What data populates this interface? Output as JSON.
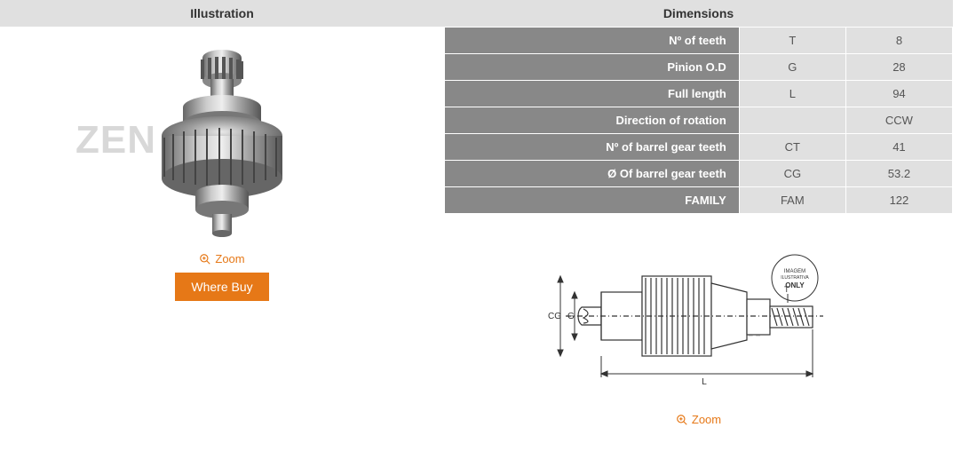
{
  "illustration": {
    "header": "Illustration",
    "zoom_label": "Zoom",
    "where_buy_label": "Where Buy",
    "watermark": "ZEN S.A."
  },
  "dimensions": {
    "header": "Dimensions",
    "rows": [
      {
        "label": "Nº of teeth",
        "code": "T",
        "value": "8"
      },
      {
        "label": "Pinion O.D",
        "code": "G",
        "value": "28"
      },
      {
        "label": "Full length",
        "code": "L",
        "value": "94"
      },
      {
        "label": "Direction of rotation",
        "code": "",
        "value": "CCW"
      },
      {
        "label": "Nº of barrel gear teeth",
        "code": "CT",
        "value": "41"
      },
      {
        "label": "Ø Of barrel gear teeth",
        "code": "CG",
        "value": "53.2"
      },
      {
        "label": "FAMILY",
        "code": "FAM",
        "value": "122"
      }
    ],
    "schematic_labels": {
      "cg": "CG",
      "g": "G",
      "l": "L",
      "t": "T"
    },
    "schematic_badge": {
      "line1": "IMAGEM",
      "line2": "ILUSTRATIVA",
      "line3": "ONLY"
    },
    "zoom_label": "Zoom"
  },
  "colors": {
    "accent": "#e67817",
    "header_bg": "#e0e0e0",
    "row_label_bg": "#888888",
    "cell_bg": "#e0e0e0",
    "watermark": "#d8d8d8"
  }
}
